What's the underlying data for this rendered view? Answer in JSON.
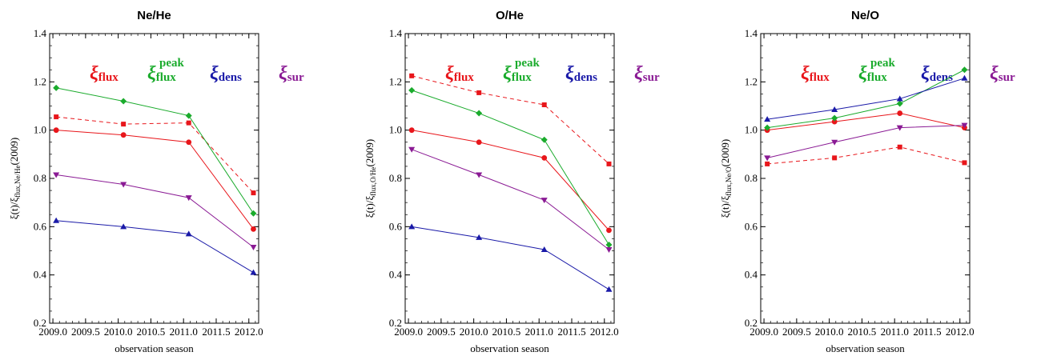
{
  "colors": {
    "flux": "#e8161b",
    "peak": "#1aab2c",
    "dens": "#1a1aa8",
    "sur": "#8a1a94"
  },
  "chart_data": [
    {
      "type": "line",
      "title": "Ne/He",
      "xlabel": "observation season",
      "ylabel": "ξ(t)/ξflux,Ne/He(2009)",
      "ylabel_parts": {
        "main": "ξ(t)/ξ",
        "sub": "flux,Ne/He",
        "tail": "(2009)"
      },
      "xlim": [
        2008.95,
        2012.15
      ],
      "ylim": [
        0.2,
        1.4
      ],
      "xticks": [
        "2009.0",
        "2009.5",
        "2010.0",
        "2010.5",
        "2011.0",
        "2011.5",
        "2012.0"
      ],
      "yticks": [
        "0.2",
        "0.4",
        "0.6",
        "0.8",
        "1.0",
        "1.2",
        "1.4"
      ],
      "legend": {
        "flux": "ξ",
        "flux_sub": "flux",
        "peak": "ξ",
        "peak_sub": "flux",
        "peak_sup": "peak",
        "dens": "ξ",
        "dens_sub": "dens",
        "sur": "ξ",
        "sur_sub": "sur"
      },
      "x": [
        2009.05,
        2010.08,
        2011.08,
        2012.07
      ],
      "series": [
        {
          "key": "flux",
          "marker": "circle",
          "dash": false,
          "values": [
            1.0,
            0.98,
            0.95,
            0.59
          ]
        },
        {
          "key": "flux",
          "marker": "square",
          "dash": true,
          "values": [
            1.055,
            1.025,
            1.03,
            0.74
          ]
        },
        {
          "key": "peak",
          "marker": "diamond",
          "dash": false,
          "values": [
            1.175,
            1.12,
            1.06,
            0.655
          ]
        },
        {
          "key": "dens",
          "marker": "triangle-up",
          "dash": false,
          "values": [
            0.625,
            0.6,
            0.57,
            0.41
          ]
        },
        {
          "key": "sur",
          "marker": "triangle-down",
          "dash": false,
          "values": [
            0.815,
            0.775,
            0.72,
            0.515
          ]
        }
      ]
    },
    {
      "type": "line",
      "title": "O/He",
      "xlabel": "observation season",
      "ylabel": "ξ(t)/ξflux,O/He(2009)",
      "ylabel_parts": {
        "main": "ξ(t)/ξ",
        "sub": "flux,O/He",
        "tail": "(2009)"
      },
      "xlim": [
        2008.95,
        2012.15
      ],
      "ylim": [
        0.2,
        1.4
      ],
      "xticks": [
        "2009.0",
        "2009.5",
        "2010.0",
        "2010.5",
        "2011.0",
        "2011.5",
        "2012.0"
      ],
      "yticks": [
        "0.2",
        "0.4",
        "0.6",
        "0.8",
        "1.0",
        "1.2",
        "1.4"
      ],
      "legend": {
        "flux": "ξ",
        "flux_sub": "flux",
        "peak": "ξ",
        "peak_sub": "flux",
        "peak_sup": "peak",
        "dens": "ξ",
        "dens_sub": "dens",
        "sur": "ξ",
        "sur_sub": "sur"
      },
      "x": [
        2009.05,
        2010.08,
        2011.08,
        2012.07
      ],
      "series": [
        {
          "key": "flux",
          "marker": "circle",
          "dash": false,
          "values": [
            1.0,
            0.95,
            0.885,
            0.585
          ]
        },
        {
          "key": "flux",
          "marker": "square",
          "dash": true,
          "values": [
            1.225,
            1.155,
            1.105,
            0.86
          ]
        },
        {
          "key": "peak",
          "marker": "diamond",
          "dash": false,
          "values": [
            1.165,
            1.07,
            0.96,
            0.525
          ]
        },
        {
          "key": "dens",
          "marker": "triangle-up",
          "dash": false,
          "values": [
            0.6,
            0.555,
            0.505,
            0.34
          ]
        },
        {
          "key": "sur",
          "marker": "triangle-down",
          "dash": false,
          "values": [
            0.92,
            0.815,
            0.71,
            0.505
          ]
        }
      ]
    },
    {
      "type": "line",
      "title": "Ne/O",
      "xlabel": "observation season",
      "ylabel": "ξ(t)/ξflux,Ne/O(2009)",
      "ylabel_parts": {
        "main": "ξ(t)/ξ",
        "sub": "flux,Ne/O",
        "tail": "(2009)"
      },
      "xlim": [
        2008.95,
        2012.15
      ],
      "ylim": [
        0.2,
        1.4
      ],
      "xticks": [
        "2009.0",
        "2009.5",
        "2010.0",
        "2010.5",
        "2011.0",
        "2011.5",
        "2012.0"
      ],
      "yticks": [
        "0.2",
        "0.4",
        "0.6",
        "0.8",
        "1.0",
        "1.2",
        "1.4"
      ],
      "legend": {
        "flux": "ξ",
        "flux_sub": "flux",
        "peak": "ξ",
        "peak_sub": "flux",
        "peak_sup": "peak",
        "dens": "ξ",
        "dens_sub": "dens",
        "sur": "ξ",
        "sur_sub": "sur"
      },
      "x": [
        2009.05,
        2010.08,
        2011.08,
        2012.07
      ],
      "series": [
        {
          "key": "flux",
          "marker": "circle",
          "dash": false,
          "values": [
            1.0,
            1.035,
            1.07,
            1.01
          ]
        },
        {
          "key": "flux",
          "marker": "square",
          "dash": true,
          "values": [
            0.86,
            0.885,
            0.93,
            0.865
          ]
        },
        {
          "key": "peak",
          "marker": "diamond",
          "dash": false,
          "values": [
            1.01,
            1.05,
            1.11,
            1.25
          ]
        },
        {
          "key": "dens",
          "marker": "triangle-up",
          "dash": false,
          "values": [
            1.045,
            1.085,
            1.13,
            1.215
          ]
        },
        {
          "key": "sur",
          "marker": "triangle-down",
          "dash": false,
          "values": [
            0.885,
            0.95,
            1.01,
            1.02
          ]
        }
      ]
    }
  ]
}
